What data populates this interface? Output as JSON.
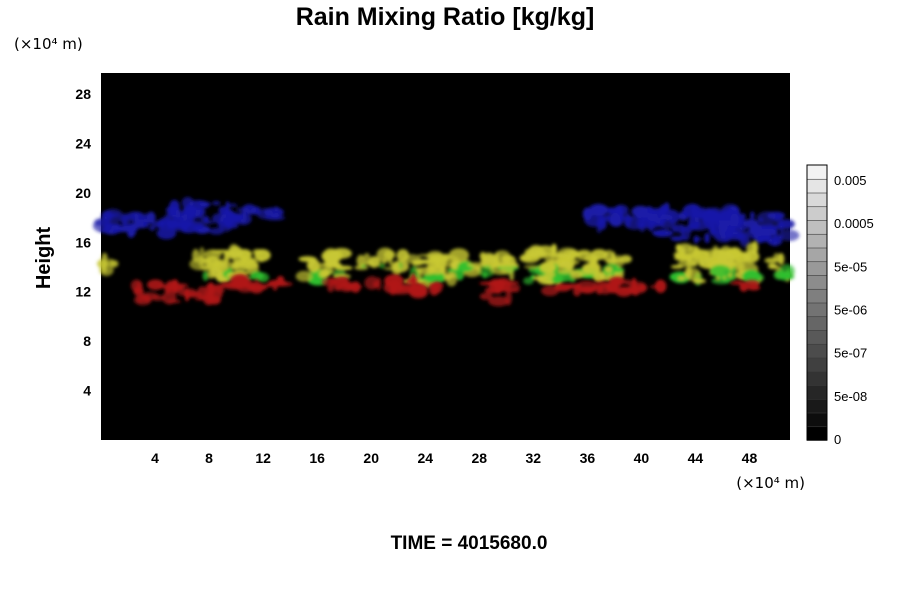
{
  "chart_data": {
    "type": "heatmap",
    "title": "Rain Mixing Ratio [kg/kg]",
    "xlabel": "",
    "ylabel": "Height",
    "x_unit": "(×10⁴ m)",
    "y_unit": "(×10⁴ m)",
    "x_ticks": [
      4,
      8,
      12,
      16,
      20,
      24,
      28,
      32,
      36,
      40,
      44,
      48
    ],
    "y_ticks": [
      4,
      8,
      12,
      16,
      20,
      24,
      28
    ],
    "xlim": [
      0,
      51
    ],
    "ylim": [
      0,
      29.7
    ],
    "background_color": "#000000",
    "colorbar": {
      "labels": [
        "0.005",
        "0.0005",
        "5e-05",
        "5e-06",
        "5e-07",
        "5e-08",
        "0"
      ],
      "label_values": [
        0.005,
        0.0005,
        5e-05,
        5e-06,
        5e-07,
        5e-08,
        0
      ],
      "levels": 20,
      "color_low": "#000000",
      "color_high": "#f2f2f2"
    },
    "layers": [
      {
        "color": "#1a1aa8",
        "height_range": [
          16,
          19
        ],
        "clusters": [
          {
            "x": [
              0,
              5
            ],
            "y": [
              16.6,
              18.2
            ]
          },
          {
            "x": [
              5,
              10
            ],
            "y": [
              16.8,
              19.2
            ]
          },
          {
            "x": [
              9,
              13
            ],
            "y": [
              17.8,
              18.7
            ]
          },
          {
            "x": [
              36,
              42
            ],
            "y": [
              17.2,
              18.8
            ]
          },
          {
            "x": [
              41,
              47
            ],
            "y": [
              16.2,
              18.6
            ]
          },
          {
            "x": [
              46,
              51
            ],
            "y": [
              16.0,
              18.2
            ]
          }
        ]
      },
      {
        "color": "#c8c834",
        "color_secondary": "#2fbf2f",
        "height_range": [
          12.5,
          15.5
        ],
        "clusters": [
          {
            "x": [
              0,
              1
            ],
            "y": [
              13.5,
              15
            ]
          },
          {
            "x": [
              7,
              12
            ],
            "y": [
              13,
              15.3
            ]
          },
          {
            "x": [
              15,
              18
            ],
            "y": [
              12.8,
              15.1
            ]
          },
          {
            "x": [
              19,
              20.5
            ],
            "y": [
              13.8,
              14.8
            ]
          },
          {
            "x": [
              20.5,
              22.5
            ],
            "y": [
              13.8,
              15
            ]
          },
          {
            "x": [
              23,
              26
            ],
            "y": [
              12.6,
              15.1
            ]
          },
          {
            "x": [
              26,
              30.5
            ],
            "y": [
              13.3,
              15
            ]
          },
          {
            "x": [
              31,
              35
            ],
            "y": [
              12.8,
              15.5
            ]
          },
          {
            "x": [
              34.5,
              39
            ],
            "y": [
              13.2,
              15.2
            ]
          },
          {
            "x": [
              42.5,
              48.5
            ],
            "y": [
              12.8,
              15.6
            ]
          },
          {
            "x": [
              49.5,
              51
            ],
            "y": [
              12.8,
              14.8
            ]
          }
        ]
      },
      {
        "color": "#b01818",
        "height_range": [
          11,
          13
        ],
        "clusters": [
          {
            "x": [
              2.5,
              6
            ],
            "y": [
              11.2,
              12.6
            ]
          },
          {
            "x": [
              6,
              8.5
            ],
            "y": [
              11.3,
              12.4
            ]
          },
          {
            "x": [
              8.5,
              11
            ],
            "y": [
              12,
              13
            ]
          },
          {
            "x": [
              11,
              14
            ],
            "y": [
              12.3,
              13
            ]
          },
          {
            "x": [
              16,
              20
            ],
            "y": [
              12.2,
              12.9
            ]
          },
          {
            "x": [
              20,
              25
            ],
            "y": [
              11.9,
              13
            ]
          },
          {
            "x": [
              28.5,
              30.5
            ],
            "y": [
              11.2,
              12.8
            ]
          },
          {
            "x": [
              33,
              37
            ],
            "y": [
              12,
              12.6
            ]
          },
          {
            "x": [
              37,
              41.5
            ],
            "y": [
              12,
              13
            ]
          },
          {
            "x": [
              47,
              48.5
            ],
            "y": [
              12.3,
              12.9
            ]
          }
        ]
      }
    ]
  },
  "time_label": "TIME = 4015680.0"
}
